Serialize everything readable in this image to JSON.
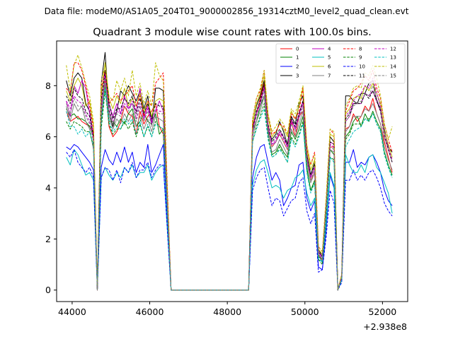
{
  "chart_data": {
    "type": "line",
    "suptitle": "Data file: modeM0/AS1A05_204T01_9000002856_19314cztM0_level2_quad_clean.evt",
    "title": "Quadrant 3 module wise count rates with 100.0s bins.",
    "xlabel": "",
    "ylabel": "",
    "x_offset_label": "+2.938e8",
    "xlim": [
      43600,
      52650
    ],
    "ylim": [
      -0.45,
      9.75
    ],
    "x_ticks": [
      44000,
      46000,
      48000,
      50000,
      52000
    ],
    "x_tick_labels": [
      "44000",
      "46000",
      "48000",
      "50000",
      "52000"
    ],
    "y_ticks": [
      0,
      2,
      4,
      6,
      8
    ],
    "y_tick_labels": [
      "0",
      "2",
      "4",
      "6",
      "8"
    ],
    "legend_position": "top-right",
    "x": [
      43850,
      43950,
      44050,
      44150,
      44250,
      44350,
      44450,
      44550,
      44650,
      44750,
      44850,
      44950,
      45050,
      45150,
      45250,
      45350,
      45450,
      45550,
      45650,
      45750,
      45850,
      45950,
      46050,
      46150,
      46250,
      46350,
      46550,
      48550,
      48650,
      48750,
      48850,
      48950,
      49050,
      49150,
      49250,
      49350,
      49450,
      49550,
      49650,
      49750,
      49850,
      49950,
      50050,
      50150,
      50250,
      50350,
      50450,
      50550,
      50650,
      50750,
      50850,
      50950,
      51050,
      51150,
      51250,
      51350,
      51450,
      51550,
      51650,
      51750,
      51850,
      51950,
      52050,
      52150,
      52250
    ],
    "series": [
      {
        "name": "0",
        "color": "#ff0000",
        "dash": "solid",
        "values": [
          7.0,
          6.6,
          6.7,
          6.8,
          6.6,
          6.5,
          6.4,
          6.2,
          0.0,
          6.6,
          8.3,
          6.4,
          6.0,
          6.2,
          6.6,
          7.2,
          6.9,
          6.8,
          6.1,
          7.0,
          6.5,
          6.8,
          7.0,
          7.3,
          6.4,
          6.1,
          0.0,
          0.0,
          6.4,
          6.9,
          7.5,
          8.1,
          6.5,
          5.6,
          5.8,
          6.1,
          5.8,
          5.5,
          6.6,
          6.0,
          6.8,
          7.0,
          5.0,
          4.3,
          4.6,
          1.4,
          1.1,
          3.2,
          5.6,
          5.6,
          0.0,
          0.5,
          6.3,
          6.4,
          6.9,
          6.6,
          6.8,
          7.2,
          7.0,
          7.5,
          6.9,
          6.5,
          5.8,
          5.2,
          4.6
        ]
      },
      {
        "name": "1",
        "color": "#008000",
        "dash": "solid",
        "values": [
          7.1,
          6.8,
          6.9,
          6.7,
          6.7,
          6.6,
          6.4,
          6.0,
          0.0,
          6.6,
          8.0,
          6.6,
          6.6,
          6.4,
          6.7,
          6.5,
          6.9,
          7.1,
          6.4,
          6.6,
          6.9,
          6.6,
          6.5,
          6.9,
          6.1,
          6.3,
          0.0,
          0.0,
          6.2,
          6.6,
          7.2,
          7.6,
          6.2,
          5.3,
          5.4,
          5.7,
          5.4,
          5.2,
          6.2,
          5.9,
          6.3,
          6.8,
          4.8,
          3.9,
          4.3,
          1.3,
          1.2,
          3.2,
          5.5,
          5.3,
          0.0,
          0.5,
          6.0,
          6.2,
          6.6,
          6.8,
          6.4,
          6.9,
          6.6,
          7.0,
          6.6,
          6.3,
          5.4,
          4.9,
          4.5
        ]
      },
      {
        "name": "2",
        "color": "#0000ff",
        "dash": "solid",
        "values": [
          5.6,
          5.5,
          5.7,
          5.6,
          5.4,
          5.2,
          5.0,
          4.7,
          0.0,
          4.8,
          5.5,
          5.1,
          4.9,
          5.4,
          5.0,
          5.6,
          5.0,
          5.4,
          4.6,
          5.0,
          4.8,
          5.7,
          4.6,
          4.9,
          5.3,
          5.7,
          0.0,
          0.0,
          4.4,
          5.2,
          5.6,
          5.7,
          5.0,
          4.3,
          4.6,
          4.3,
          3.3,
          3.6,
          4.0,
          4.1,
          4.9,
          5.0,
          3.6,
          3.1,
          3.5,
          0.9,
          0.8,
          2.4,
          4.5,
          4.0,
          0.0,
          0.4,
          5.0,
          5.0,
          5.5,
          4.8,
          5.0,
          4.9,
          5.2,
          5.3,
          5.0,
          4.6,
          3.9,
          3.5,
          3.3
        ]
      },
      {
        "name": "3",
        "color": "#000000",
        "dash": "solid",
        "values": [
          8.2,
          7.6,
          8.3,
          8.5,
          8.3,
          7.3,
          7.0,
          6.0,
          0.0,
          8.1,
          9.3,
          7.0,
          6.4,
          7.0,
          7.8,
          7.6,
          8.0,
          7.7,
          7.4,
          7.8,
          7.1,
          7.6,
          6.5,
          7.9,
          7.9,
          7.8,
          0.0,
          0.0,
          6.5,
          7.2,
          7.6,
          8.2,
          6.2,
          5.9,
          6.1,
          6.6,
          6.2,
          5.7,
          6.8,
          6.5,
          7.3,
          7.6,
          5.3,
          4.5,
          5.0,
          1.6,
          1.3,
          3.4,
          6.0,
          5.8,
          0.0,
          0.6,
          7.6,
          7.6,
          7.4,
          7.3,
          7.7,
          7.7,
          8.1,
          8.2,
          7.4,
          7.1,
          6.3,
          5.6,
          5.4
        ]
      },
      {
        "name": "4",
        "color": "#c000c0",
        "dash": "solid",
        "values": [
          7.4,
          6.8,
          8.0,
          7.7,
          8.2,
          7.9,
          6.9,
          6.0,
          0.0,
          7.0,
          8.5,
          7.3,
          6.8,
          7.3,
          6.9,
          7.6,
          7.1,
          7.3,
          7.0,
          7.9,
          6.7,
          7.2,
          6.6,
          7.0,
          7.4,
          7.0,
          0.0,
          0.0,
          6.3,
          6.9,
          7.3,
          8.0,
          6.4,
          5.7,
          5.8,
          6.2,
          6.0,
          5.6,
          6.7,
          6.3,
          6.9,
          7.4,
          5.2,
          4.4,
          4.8,
          1.5,
          1.2,
          3.3,
          5.8,
          5.7,
          0.0,
          0.5,
          6.6,
          6.8,
          7.3,
          7.3,
          7.3,
          7.7,
          7.6,
          7.8,
          7.4,
          7.0,
          6.0,
          5.5,
          5.0
        ]
      },
      {
        "name": "5",
        "color": "#00bfbf",
        "dash": "solid",
        "values": [
          5.2,
          4.9,
          5.5,
          5.3,
          4.9,
          4.5,
          4.6,
          4.3,
          0.0,
          4.4,
          4.8,
          4.5,
          4.3,
          4.6,
          4.4,
          4.8,
          4.6,
          4.9,
          4.4,
          4.6,
          4.6,
          4.9,
          4.3,
          4.6,
          4.8,
          4.9,
          0.0,
          0.0,
          4.1,
          4.7,
          5.0,
          5.1,
          4.6,
          4.0,
          4.1,
          4.0,
          3.6,
          3.9,
          4.0,
          4.4,
          4.5,
          4.7,
          3.8,
          3.3,
          3.6,
          1.2,
          1.1,
          2.6,
          4.6,
          4.1,
          0.0,
          0.5,
          5.3,
          4.9,
          4.6,
          4.6,
          4.9,
          4.6,
          5.2,
          5.3,
          4.8,
          4.6,
          4.2,
          3.8,
          3.0
        ]
      },
      {
        "name": "6",
        "color": "#bfbf00",
        "dash": "solid",
        "values": [
          7.8,
          7.4,
          8.0,
          8.3,
          8.0,
          7.2,
          7.4,
          6.4,
          0.0,
          7.6,
          8.9,
          7.5,
          7.1,
          7.6,
          7.3,
          7.9,
          7.2,
          7.5,
          7.2,
          7.7,
          7.0,
          7.4,
          6.8,
          7.4,
          7.5,
          7.4,
          0.0,
          0.0,
          6.5,
          7.3,
          7.7,
          8.4,
          6.8,
          6.0,
          6.2,
          6.5,
          6.3,
          6.0,
          7.0,
          6.7,
          7.2,
          7.9,
          5.5,
          4.7,
          5.1,
          1.6,
          1.4,
          3.5,
          6.1,
          6.0,
          0.0,
          0.6,
          6.9,
          7.1,
          7.5,
          7.6,
          7.5,
          8.0,
          7.8,
          8.1,
          7.7,
          7.3,
          6.2,
          5.7,
          5.2
        ]
      },
      {
        "name": "7",
        "color": "#808080",
        "dash": "solid",
        "values": [
          7.2,
          6.6,
          7.3,
          7.0,
          7.2,
          6.6,
          6.3,
          5.5,
          0.0,
          6.8,
          8.1,
          6.8,
          6.3,
          6.7,
          6.5,
          6.9,
          6.6,
          6.9,
          6.4,
          6.8,
          6.3,
          6.7,
          6.2,
          6.8,
          6.7,
          6.6,
          0.0,
          0.0,
          6.0,
          6.6,
          7.0,
          7.6,
          6.1,
          5.4,
          5.5,
          5.9,
          5.6,
          5.3,
          6.3,
          6.0,
          6.5,
          7.0,
          5.0,
          4.2,
          4.6,
          1.4,
          1.2,
          3.1,
          5.5,
          5.4,
          0.0,
          0.5,
          6.2,
          6.4,
          6.8,
          6.8,
          6.8,
          7.1,
          7.0,
          7.3,
          6.9,
          6.5,
          5.6,
          5.1,
          4.7
        ]
      },
      {
        "name": "8",
        "color": "#ff0000",
        "dash": "dashed",
        "values": [
          7.9,
          7.7,
          8.9,
          8.9,
          8.6,
          8.0,
          7.2,
          6.3,
          0.0,
          7.9,
          8.6,
          7.3,
          7.5,
          7.7,
          7.4,
          7.6,
          7.8,
          8.0,
          7.2,
          7.6,
          6.8,
          7.4,
          7.2,
          8.1,
          8.3,
          8.5,
          0.0,
          0.0,
          6.7,
          7.5,
          7.8,
          8.6,
          6.9,
          6.1,
          6.2,
          6.5,
          6.4,
          6.1,
          6.9,
          6.7,
          7.0,
          7.9,
          5.6,
          4.9,
          5.4,
          1.7,
          1.5,
          3.6,
          6.3,
          6.1,
          0.0,
          0.6,
          7.0,
          7.4,
          7.8,
          7.9,
          8.1,
          8.4,
          8.2,
          8.6,
          7.9,
          7.5,
          6.5,
          5.9,
          5.4
        ]
      },
      {
        "name": "9",
        "color": "#008000",
        "dash": "dashed",
        "values": [
          6.6,
          6.3,
          6.6,
          6.5,
          6.4,
          6.2,
          6.2,
          5.6,
          0.0,
          6.3,
          7.8,
          6.5,
          6.1,
          6.3,
          6.3,
          6.6,
          6.3,
          6.6,
          6.0,
          6.5,
          6.0,
          6.4,
          6.0,
          6.6,
          6.4,
          6.3,
          0.0,
          0.0,
          5.8,
          6.4,
          6.8,
          7.3,
          6.0,
          5.2,
          5.3,
          5.6,
          5.3,
          5.0,
          6.0,
          5.7,
          6.1,
          6.6,
          4.7,
          3.9,
          4.2,
          1.2,
          1.0,
          2.9,
          5.2,
          5.1,
          0.0,
          0.4,
          5.9,
          6.1,
          6.5,
          6.5,
          6.5,
          6.7,
          6.7,
          6.9,
          6.5,
          6.2,
          5.3,
          4.8,
          4.4
        ]
      },
      {
        "name": "10",
        "color": "#0000ff",
        "dash": "dashed",
        "values": [
          5.4,
          5.2,
          5.5,
          5.0,
          4.8,
          4.6,
          4.8,
          4.4,
          0.0,
          4.4,
          4.8,
          4.7,
          4.3,
          4.7,
          4.2,
          4.8,
          4.6,
          5.0,
          4.4,
          4.7,
          4.7,
          5.0,
          4.4,
          4.7,
          4.9,
          4.9,
          0.0,
          0.0,
          3.9,
          4.4,
          4.7,
          4.8,
          4.0,
          3.3,
          3.6,
          3.5,
          2.9,
          3.2,
          3.5,
          3.6,
          4.2,
          4.4,
          3.1,
          2.6,
          3.0,
          0.7,
          0.8,
          2.1,
          3.9,
          3.4,
          0.0,
          0.3,
          4.3,
          4.3,
          4.7,
          4.3,
          4.5,
          4.3,
          4.6,
          4.7,
          4.4,
          4.0,
          3.4,
          3.1,
          2.9
        ]
      },
      {
        "name": "11",
        "color": "#000000",
        "dash": "dashed",
        "values": [
          7.6,
          7.3,
          7.9,
          7.6,
          7.5,
          7.0,
          6.8,
          6.0,
          0.0,
          7.4,
          8.6,
          7.3,
          6.7,
          7.1,
          7.1,
          7.5,
          7.3,
          7.6,
          6.9,
          7.5,
          6.9,
          7.3,
          6.7,
          7.3,
          7.2,
          7.2,
          0.0,
          0.0,
          6.3,
          7.0,
          7.4,
          8.0,
          6.5,
          5.8,
          6.0,
          6.3,
          6.0,
          5.7,
          6.7,
          6.4,
          6.9,
          7.4,
          5.3,
          4.5,
          4.9,
          1.5,
          1.3,
          3.3,
          5.8,
          5.7,
          0.0,
          0.5,
          6.7,
          6.9,
          7.3,
          7.3,
          7.3,
          7.7,
          7.5,
          7.8,
          7.4,
          7.0,
          6.0,
          5.5,
          5.0
        ]
      },
      {
        "name": "12",
        "color": "#c000c0",
        "dash": "dashed",
        "values": [
          7.4,
          7.1,
          7.6,
          7.4,
          7.3,
          6.9,
          6.6,
          5.9,
          0.0,
          7.2,
          8.4,
          7.1,
          6.6,
          7.0,
          6.9,
          7.3,
          7.1,
          7.4,
          6.7,
          7.3,
          6.7,
          7.1,
          6.5,
          7.1,
          7.0,
          7.0,
          0.0,
          0.0,
          6.2,
          6.9,
          7.3,
          7.9,
          6.4,
          5.7,
          5.9,
          6.2,
          5.9,
          5.6,
          6.6,
          6.3,
          6.8,
          7.3,
          5.2,
          4.4,
          4.8,
          1.5,
          1.3,
          3.3,
          5.7,
          5.6,
          0.0,
          0.5,
          6.8,
          7.0,
          7.4,
          7.6,
          7.7,
          8.0,
          7.9,
          8.3,
          7.7,
          7.2,
          6.1,
          5.6,
          5.1
        ]
      },
      {
        "name": "13",
        "color": "#00bfbf",
        "dash": "dashed",
        "values": [
          7.0,
          6.4,
          6.4,
          6.1,
          6.3,
          6.0,
          6.2,
          5.7,
          0.0,
          6.6,
          7.9,
          6.6,
          6.2,
          6.4,
          6.3,
          6.7,
          6.5,
          6.7,
          6.1,
          6.6,
          6.0,
          6.5,
          6.0,
          6.5,
          6.4,
          6.3,
          0.0,
          0.0,
          5.8,
          6.3,
          6.7,
          7.1,
          5.9,
          5.2,
          5.3,
          5.5,
          5.3,
          5.0,
          5.9,
          5.6,
          6.0,
          6.5,
          4.6,
          3.8,
          4.2,
          1.3,
          1.1,
          2.9,
          5.2,
          5.0,
          0.0,
          0.4,
          5.6,
          5.9,
          6.2,
          6.3,
          6.4,
          6.7,
          6.6,
          6.9,
          6.5,
          6.2,
          5.3,
          4.8,
          4.4
        ]
      },
      {
        "name": "14",
        "color": "#bfbf00",
        "dash": "dashed",
        "values": [
          8.8,
          7.8,
          8.8,
          9.2,
          8.7,
          8.1,
          7.6,
          6.6,
          0.0,
          8.2,
          8.8,
          7.6,
          7.4,
          8.2,
          7.8,
          8.3,
          7.6,
          8.6,
          7.6,
          8.1,
          7.3,
          7.8,
          7.2,
          8.9,
          8.4,
          8.2,
          0.0,
          0.0,
          6.7,
          7.5,
          7.9,
          8.6,
          6.9,
          6.2,
          6.4,
          6.7,
          6.5,
          6.1,
          7.1,
          6.9,
          7.4,
          8.0,
          5.7,
          4.9,
          5.3,
          1.7,
          1.5,
          3.7,
          6.3,
          6.2,
          0.0,
          0.6,
          7.2,
          7.5,
          7.9,
          8.0,
          7.9,
          8.5,
          8.4,
          8.8,
          8.3,
          7.6,
          6.5,
          5.9,
          6.4
        ]
      },
      {
        "name": "15",
        "color": "#808080",
        "dash": "dashed",
        "values": [
          7.3,
          6.9,
          7.5,
          7.2,
          7.2,
          6.8,
          6.5,
          5.8,
          0.0,
          7.1,
          8.3,
          7.0,
          6.5,
          6.9,
          6.8,
          7.2,
          7.0,
          7.3,
          6.6,
          7.2,
          6.6,
          7.0,
          6.4,
          7.0,
          6.9,
          6.9,
          0.0,
          0.0,
          6.1,
          6.8,
          7.2,
          7.8,
          6.3,
          5.6,
          5.8,
          6.1,
          5.8,
          5.5,
          6.5,
          6.2,
          6.7,
          7.2,
          5.1,
          4.3,
          4.7,
          1.4,
          1.2,
          3.2,
          5.6,
          5.5,
          0.0,
          0.5,
          6.6,
          6.8,
          7.2,
          7.3,
          7.4,
          7.7,
          7.6,
          8.0,
          7.5,
          7.1,
          6.0,
          5.5,
          5.0
        ]
      }
    ]
  }
}
